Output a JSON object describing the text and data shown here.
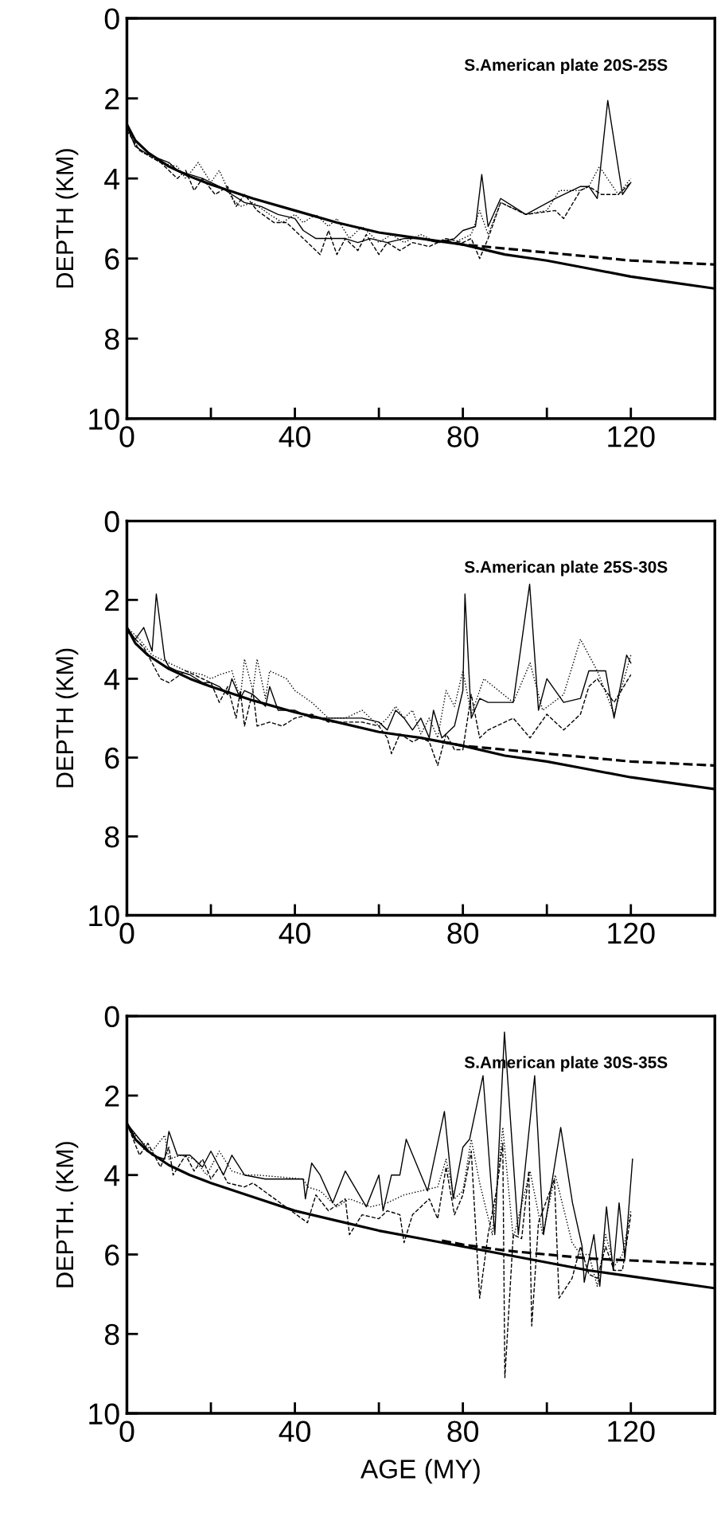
{
  "chart_data": [
    {
      "type": "line",
      "annotations": [
        "S.American plate 20S-25S"
      ],
      "ylabel": "DEPTH (KM)",
      "xlim": [
        0,
        140
      ],
      "ylim": [
        10,
        0
      ],
      "xticks": [
        0,
        {
          "value": 20,
          "label": null
        },
        40,
        {
          "value": 60,
          "label": null
        },
        80,
        {
          "value": 100,
          "label": null
        },
        120
      ],
      "yticks": [
        0,
        2,
        4,
        6,
        8,
        10
      ],
      "grid": false,
      "legend": false,
      "series": [
        {
          "color": "#000000",
          "line_style": "solid",
          "x": [
            0,
            2,
            5,
            10,
            12,
            15,
            18,
            22,
            25,
            28,
            32,
            36,
            40,
            42,
            45,
            48,
            52,
            55,
            58,
            62,
            66,
            70,
            74,
            78,
            80,
            83,
            84.5,
            86,
            89,
            95,
            102,
            108,
            110,
            112,
            114.5,
            118,
            120
          ],
          "values": [
            2.7,
            3.2,
            3.4,
            3.6,
            3.8,
            3.9,
            4.0,
            4.2,
            4.4,
            4.6,
            4.7,
            4.9,
            5.0,
            5.3,
            5.5,
            5.5,
            5.5,
            5.6,
            5.5,
            5.6,
            5.5,
            5.5,
            5.6,
            5.5,
            5.3,
            5.2,
            3.9,
            5.2,
            4.5,
            4.9,
            4.5,
            4.2,
            4.2,
            4.5,
            2.05,
            4.4,
            4.1
          ]
        },
        {
          "color": "#000000",
          "line_style": "dotted",
          "x": [
            0,
            3,
            8,
            12,
            14,
            17,
            20,
            22,
            25,
            27,
            30,
            34,
            37,
            40,
            42,
            45,
            48,
            50,
            53,
            56,
            60,
            63,
            66,
            70,
            74,
            78,
            82,
            84,
            86,
            89,
            95,
            100,
            103,
            108,
            110,
            112.5,
            117,
            120
          ],
          "values": [
            2.7,
            3.3,
            3.6,
            3.7,
            4.0,
            3.6,
            4.1,
            3.8,
            4.5,
            4.7,
            4.6,
            4.9,
            5.1,
            4.9,
            5.1,
            4.9,
            5.2,
            5.0,
            5.5,
            5.2,
            5.6,
            5.4,
            5.6,
            5.4,
            5.6,
            5.6,
            5.4,
            4.8,
            5.4,
            4.6,
            4.9,
            4.8,
            4.3,
            4.3,
            4.2,
            3.7,
            4.4,
            4.0
          ]
        },
        {
          "color": "#000000",
          "line_style": "dashed",
          "x": [
            0,
            3,
            8,
            12,
            14,
            16,
            18,
            21,
            24,
            26,
            28,
            31,
            35,
            38,
            41,
            44,
            46,
            48,
            50,
            52,
            55,
            57,
            60,
            62,
            65,
            68,
            72,
            76,
            80,
            82,
            84,
            86,
            89,
            95,
            102,
            104,
            108,
            110,
            113,
            117,
            120
          ],
          "values": [
            2.8,
            3.3,
            3.6,
            4.0,
            3.8,
            4.3,
            4.0,
            4.4,
            4.2,
            4.7,
            4.4,
            4.8,
            5.1,
            5.1,
            5.4,
            5.7,
            5.9,
            5.3,
            5.9,
            5.5,
            5.8,
            5.4,
            5.9,
            5.6,
            5.8,
            5.6,
            5.7,
            5.5,
            5.6,
            5.5,
            6.0,
            5.5,
            4.6,
            4.9,
            4.8,
            5.0,
            4.3,
            4.2,
            4.4,
            4.4,
            4.1
          ]
        },
        {
          "type": "line",
          "color": "#000000",
          "line_style": "solid",
          "x": [
            0,
            2,
            5,
            10,
            15,
            20,
            30,
            40,
            50,
            60,
            70,
            80,
            90,
            100,
            110,
            120,
            130,
            140
          ],
          "values": [
            2.65,
            3.05,
            3.35,
            3.7,
            3.95,
            4.15,
            4.5,
            4.8,
            5.1,
            5.35,
            5.5,
            5.65,
            5.9,
            6.05,
            6.25,
            6.45,
            6.6,
            6.75
          ]
        },
        {
          "type": "line",
          "color": "#000000",
          "line_style": "dashed",
          "x": [
            75,
            80,
            90,
            100,
            110,
            120,
            130,
            140
          ],
          "values": [
            5.55,
            5.65,
            5.75,
            5.85,
            5.95,
            6.05,
            6.1,
            6.15
          ]
        }
      ]
    },
    {
      "type": "line",
      "annotations": [
        "S.American plate 25S-30S"
      ],
      "ylabel": "DEPTH (KM)",
      "xlim": [
        0,
        140
      ],
      "ylim": [
        10,
        0
      ],
      "xticks": [
        0,
        {
          "value": 20,
          "label": null
        },
        40,
        {
          "value": 60,
          "label": null
        },
        80,
        {
          "value": 100,
          "label": null
        },
        120
      ],
      "yticks": [
        0,
        2,
        4,
        6,
        8,
        10
      ],
      "grid": false,
      "legend": false,
      "series": [
        {
          "color": "#000000",
          "line_style": "solid",
          "x": [
            0,
            2,
            4,
            6,
            7,
            9,
            10,
            12,
            15,
            18,
            20,
            22,
            24,
            25,
            27,
            28,
            30,
            33,
            34,
            36,
            40,
            44,
            48,
            52,
            56,
            60,
            62,
            64,
            66,
            68,
            70,
            72,
            73,
            75,
            78,
            80,
            80.5,
            82,
            84,
            86,
            92,
            95.9,
            98,
            100,
            104,
            108,
            110,
            114,
            116,
            119,
            120
          ],
          "values": [
            2.7,
            3.0,
            2.7,
            3.3,
            1.85,
            3.5,
            3.7,
            3.8,
            3.9,
            4.1,
            4.1,
            4.2,
            4.4,
            4.0,
            4.5,
            4.3,
            4.4,
            4.7,
            4.2,
            4.8,
            4.8,
            5.0,
            5.0,
            5.0,
            5.0,
            5.1,
            5.3,
            4.8,
            5.0,
            5.3,
            5.0,
            5.5,
            4.8,
            5.5,
            5.2,
            4.3,
            1.85,
            5.0,
            4.5,
            4.6,
            4.6,
            1.6,
            4.8,
            4.0,
            4.6,
            4.5,
            3.8,
            3.8,
            5.0,
            3.4,
            3.6
          ]
        },
        {
          "color": "#000000",
          "line_style": "dotted",
          "x": [
            0,
            3,
            6,
            10,
            14,
            18,
            20,
            22,
            25,
            27,
            28,
            30,
            31,
            33,
            34,
            38,
            40,
            44,
            48,
            52,
            56,
            60,
            62,
            64,
            66,
            68,
            70,
            72,
            74,
            76,
            78,
            80,
            82,
            85,
            92,
            96,
            99,
            104,
            108,
            112,
            116,
            120
          ],
          "values": [
            2.7,
            3.0,
            3.4,
            3.6,
            3.8,
            3.9,
            4.0,
            3.9,
            3.8,
            4.5,
            3.5,
            4.3,
            3.5,
            4.5,
            3.8,
            4.0,
            4.3,
            4.6,
            5.0,
            5.0,
            4.8,
            5.2,
            5.0,
            4.7,
            5.0,
            4.8,
            5.4,
            5.0,
            5.5,
            4.3,
            4.7,
            3.8,
            4.9,
            4.0,
            4.6,
            3.6,
            4.8,
            4.4,
            3.0,
            3.8,
            4.9,
            3.4
          ]
        },
        {
          "color": "#000000",
          "line_style": "dashed",
          "x": [
            0,
            4,
            6,
            8,
            10,
            14,
            20,
            22,
            24,
            26,
            27,
            28,
            30,
            31,
            34,
            37,
            40,
            44,
            48,
            52,
            56,
            60,
            62,
            63,
            65,
            68,
            70,
            72,
            74,
            76,
            78,
            80,
            82,
            84,
            86,
            92,
            96,
            100,
            104,
            108,
            110,
            112,
            116,
            120
          ],
          "values": [
            2.8,
            3.2,
            3.6,
            4.0,
            4.1,
            3.8,
            4.1,
            4.6,
            4.2,
            5.0,
            4.3,
            5.2,
            4.3,
            5.2,
            5.1,
            5.2,
            5.0,
            4.9,
            5.1,
            5.1,
            5.1,
            5.2,
            5.5,
            5.9,
            5.4,
            5.6,
            5.5,
            5.6,
            6.2,
            5.4,
            5.8,
            5.8,
            4.4,
            5.5,
            5.3,
            5.0,
            5.5,
            4.9,
            5.3,
            4.9,
            4.2,
            4.0,
            4.6,
            3.9
          ]
        },
        {
          "type": "line",
          "color": "#000000",
          "line_style": "solid",
          "x": [
            0,
            2,
            5,
            10,
            15,
            20,
            30,
            40,
            50,
            60,
            70,
            80,
            90,
            100,
            110,
            120,
            130,
            140
          ],
          "values": [
            2.7,
            3.1,
            3.4,
            3.75,
            4.0,
            4.2,
            4.55,
            4.85,
            5.1,
            5.35,
            5.5,
            5.7,
            5.95,
            6.1,
            6.3,
            6.5,
            6.65,
            6.8
          ]
        },
        {
          "type": "line",
          "color": "#000000",
          "line_style": "dashed",
          "x": [
            75,
            80,
            90,
            100,
            110,
            120,
            130,
            140
          ],
          "values": [
            5.6,
            5.7,
            5.8,
            5.9,
            6.0,
            6.1,
            6.15,
            6.2
          ]
        }
      ]
    },
    {
      "type": "line",
      "annotations": [
        "S.American plate 30S-35S"
      ],
      "ylabel": "DEPTH. (KM)",
      "xlabel": "AGE (MY)",
      "xlim": [
        0,
        140
      ],
      "ylim": [
        10,
        0
      ],
      "xticks": [
        0,
        {
          "value": 20,
          "label": null
        },
        40,
        {
          "value": 60,
          "label": null
        },
        80,
        {
          "value": 100,
          "label": null
        },
        120
      ],
      "yticks": [
        0,
        2,
        4,
        6,
        8,
        10
      ],
      "grid": false,
      "legend": false,
      "series": [
        {
          "color": "#000000",
          "line_style": "solid",
          "x": [
            0,
            3,
            6,
            9,
            10,
            12,
            15,
            18,
            20,
            23,
            25,
            28,
            33,
            42,
            42.5,
            44,
            46,
            49,
            52,
            57,
            60,
            61,
            63,
            65,
            66.5,
            71.6,
            75.6,
            77.7,
            80,
            81.6,
            84.8,
            87.6,
            89.9,
            93.2,
            97.1,
            99.2,
            103.3,
            106.1,
            108.4,
            108.9,
            111.2,
            112.6,
            114.2,
            115.8,
            117.2,
            118.6,
            120.4
          ],
          "values": [
            2.7,
            3.1,
            3.5,
            3.6,
            2.9,
            3.5,
            3.5,
            3.8,
            3.4,
            4.0,
            3.5,
            4.0,
            4.1,
            4.1,
            4.6,
            3.7,
            4.0,
            4.7,
            3.9,
            4.8,
            4.0,
            4.9,
            4.0,
            4.0,
            3.1,
            4.4,
            2.4,
            4.6,
            3.3,
            3.1,
            1.5,
            5.5,
            0.4,
            5.5,
            1.5,
            5.5,
            2.8,
            4.7,
            5.8,
            6.7,
            5.5,
            6.8,
            4.8,
            6.4,
            4.7,
            6.1,
            3.6
          ]
        },
        {
          "color": "#000000",
          "line_style": "dotted",
          "x": [
            0,
            2,
            4,
            6,
            9,
            10,
            13,
            16,
            19,
            22,
            25,
            28,
            31,
            42,
            43,
            46,
            50,
            53,
            58,
            62,
            66,
            70,
            74,
            76,
            78,
            80,
            82,
            84,
            87,
            89.5,
            92,
            96,
            99,
            102,
            106,
            108,
            110,
            112,
            114,
            116,
            118,
            120
          ],
          "values": [
            2.7,
            3.0,
            3.2,
            3.4,
            3.0,
            3.6,
            3.5,
            3.6,
            4.0,
            3.4,
            3.9,
            4.0,
            4.0,
            4.1,
            4.3,
            4.4,
            4.8,
            4.6,
            4.8,
            4.7,
            4.5,
            4.4,
            4.3,
            3.6,
            4.6,
            4.4,
            3.1,
            4.2,
            5.5,
            2.8,
            5.6,
            3.9,
            5.5,
            4.0,
            5.7,
            6.0,
            6.0,
            6.8,
            5.5,
            6.3,
            6.0,
            4.9
          ]
        },
        {
          "color": "#000000",
          "line_style": "dashed",
          "x": [
            0,
            3,
            5,
            8,
            10,
            11,
            14,
            16,
            18,
            20,
            22,
            24,
            28,
            30,
            43,
            45,
            48,
            52,
            53,
            56,
            60,
            62,
            65,
            66,
            68,
            72,
            74,
            76,
            78,
            80,
            82,
            84,
            86,
            88,
            89.5,
            90,
            92,
            94,
            95.7,
            96.4,
            98,
            101.8,
            102.9,
            106,
            108,
            110,
            112,
            114,
            116,
            118,
            120
          ],
          "values": [
            2.7,
            3.5,
            3.2,
            3.8,
            3.3,
            4.0,
            3.5,
            3.9,
            3.6,
            4.1,
            3.8,
            4.2,
            4.3,
            4.2,
            5.2,
            4.5,
            4.9,
            4.6,
            5.5,
            5.0,
            5.1,
            4.9,
            5.0,
            5.7,
            5.0,
            4.6,
            5.1,
            3.8,
            5.0,
            4.5,
            3.4,
            7.1,
            5.5,
            4.4,
            3.2,
            9.1,
            5.5,
            5.6,
            3.9,
            7.8,
            5.2,
            4.1,
            7.1,
            6.6,
            5.8,
            6.5,
            6.6,
            5.8,
            6.4,
            6.4,
            5.0
          ]
        },
        {
          "type": "line",
          "color": "#000000",
          "line_style": "solid",
          "x": [
            0,
            2,
            5,
            10,
            15,
            20,
            30,
            40,
            50,
            60,
            70,
            80,
            90,
            100,
            110,
            120,
            130,
            140
          ],
          "values": [
            2.7,
            3.1,
            3.4,
            3.75,
            4.0,
            4.2,
            4.55,
            4.9,
            5.15,
            5.4,
            5.6,
            5.8,
            6.0,
            6.2,
            6.4,
            6.55,
            6.7,
            6.85
          ]
        },
        {
          "type": "line",
          "color": "#000000",
          "line_style": "dashed",
          "x": [
            75,
            80,
            90,
            100,
            110,
            120,
            130,
            140
          ],
          "values": [
            5.65,
            5.75,
            5.9,
            6.0,
            6.1,
            6.15,
            6.2,
            6.25
          ]
        }
      ]
    }
  ]
}
